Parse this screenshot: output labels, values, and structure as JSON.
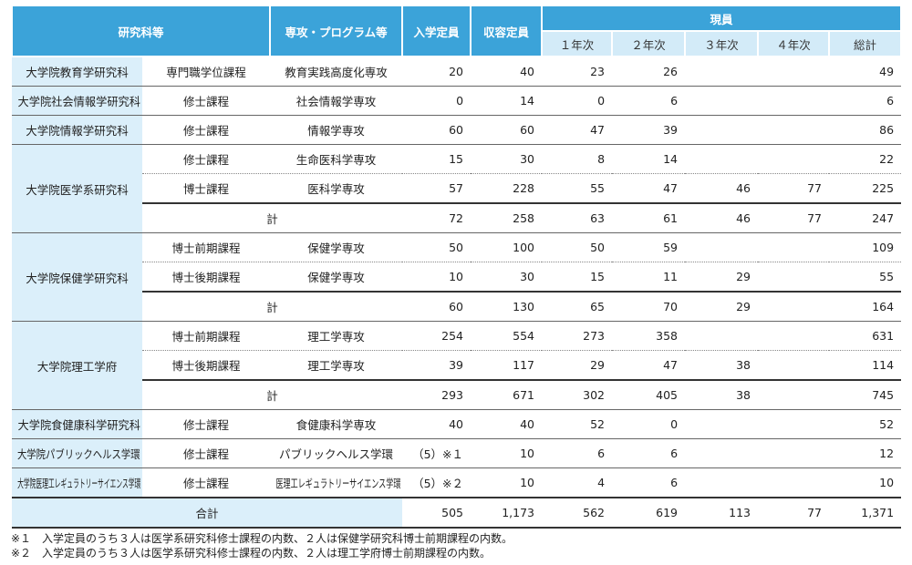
{
  "table": {
    "header": {
      "division": "研究科等",
      "major": "専攻・プログラム等",
      "admission": "入学定員",
      "capacity": "収容定員",
      "current": "現員",
      "years": [
        "１年次",
        "２年次",
        "３年次",
        "４年次",
        "総計"
      ]
    },
    "groups": [
      {
        "school": "大学院教育学研究科",
        "rows": [
          {
            "course": "専門職学位課程",
            "major": "教育実践高度化専攻",
            "values": [
              20,
              40,
              23,
              26,
              null,
              null,
              49
            ]
          }
        ]
      },
      {
        "school": "大学院社会情報学研究科",
        "rows": [
          {
            "course": "修士課程",
            "major": "社会情報学専攻",
            "values": [
              0,
              14,
              0,
              6,
              null,
              null,
              6
            ]
          }
        ]
      },
      {
        "school": "大学院情報学研究科",
        "rows": [
          {
            "course": "修士課程",
            "major": "情報学専攻",
            "values": [
              60,
              60,
              47,
              39,
              null,
              null,
              86
            ]
          }
        ]
      },
      {
        "school": "大学院医学系研究科",
        "rows": [
          {
            "course": "修士課程",
            "major": "生命医科学専攻",
            "values": [
              15,
              30,
              8,
              14,
              null,
              null,
              22
            ]
          },
          {
            "course": "博士課程",
            "major": "医科学専攻",
            "values": [
              57,
              228,
              55,
              47,
              46,
              77,
              225
            ]
          }
        ],
        "subtotal": {
          "label": "計",
          "values": [
            72,
            258,
            63,
            61,
            46,
            77,
            247
          ]
        }
      },
      {
        "school": "大学院保健学研究科",
        "rows": [
          {
            "course": "博士前期課程",
            "major": "保健学専攻",
            "values": [
              50,
              100,
              50,
              59,
              null,
              null,
              109
            ]
          },
          {
            "course": "博士後期課程",
            "major": "保健学専攻",
            "values": [
              10,
              30,
              15,
              11,
              29,
              null,
              55
            ]
          }
        ],
        "subtotal": {
          "label": "計",
          "values": [
            60,
            130,
            65,
            70,
            29,
            null,
            164
          ]
        }
      },
      {
        "school": "大学院理工学府",
        "rows": [
          {
            "course": "博士前期課程",
            "major": "理工学専攻",
            "values": [
              254,
              554,
              273,
              358,
              null,
              null,
              631
            ]
          },
          {
            "course": "博士後期課程",
            "major": "理工学専攻",
            "values": [
              39,
              117,
              29,
              47,
              38,
              null,
              114
            ]
          }
        ],
        "subtotal": {
          "label": "計",
          "values": [
            293,
            671,
            302,
            405,
            38,
            null,
            745
          ]
        }
      },
      {
        "school": "大学院食健康科学研究科",
        "rows": [
          {
            "course": "修士課程",
            "major": "食健康科学専攻",
            "values": [
              40,
              40,
              52,
              0,
              null,
              null,
              52
            ]
          }
        ]
      },
      {
        "school": "大学院パブリックヘルス学環",
        "rows": [
          {
            "course": "修士課程",
            "major": "パブリックヘルス学環",
            "values": [
              "（5）※１",
              10,
              6,
              6,
              null,
              null,
              12
            ]
          }
        ]
      },
      {
        "school": "大学院医理工レギュラトリーサイエンス学環",
        "rows": [
          {
            "course": "修士課程",
            "major": "医理工レギュラトリーサイエンス学環",
            "values": [
              "（5）※２",
              10,
              4,
              6,
              null,
              null,
              10
            ]
          }
        ]
      }
    ],
    "total": {
      "label": "合計",
      "values": [
        505,
        "1,173",
        562,
        619,
        113,
        77,
        "1,371"
      ]
    }
  },
  "notes": [
    "※１　入学定員のうち３人は医学系研究科修士課程の内数、２人は保健学研究科博士前期課程の内数。",
    "※２　入学定員のうち３人は医学系研究科修士課程の内数、２人は理工学府博士前期課程の内数。"
  ]
}
